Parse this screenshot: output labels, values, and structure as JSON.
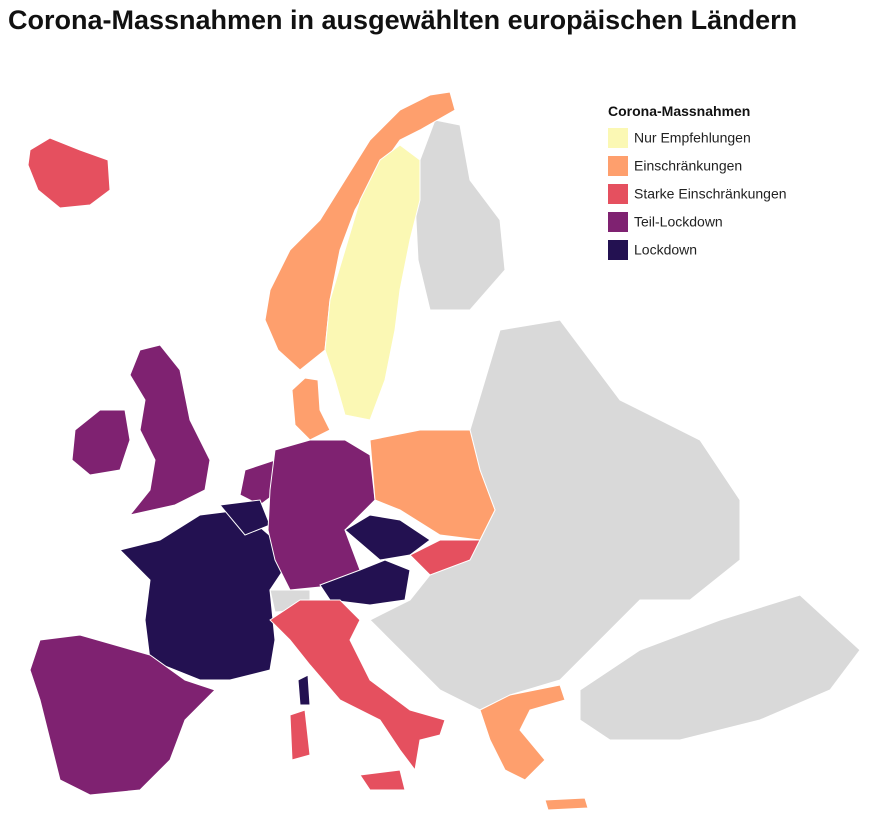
{
  "header": {
    "title": "Corona-Massnahmen in ausgewählten europäischen Ländern"
  },
  "legend": {
    "title": "Corona-Massnahmen",
    "items": [
      {
        "label": "Nur Empfehlungen",
        "color": "#fbf8b4"
      },
      {
        "label": "Einschränkungen",
        "color": "#fe9f6d"
      },
      {
        "label": "Starke Einschränkungen",
        "color": "#e5505f"
      },
      {
        "label": "Teil-Lockdown",
        "color": "#7f2271"
      },
      {
        "label": "Lockdown",
        "color": "#231151"
      }
    ]
  }
}
